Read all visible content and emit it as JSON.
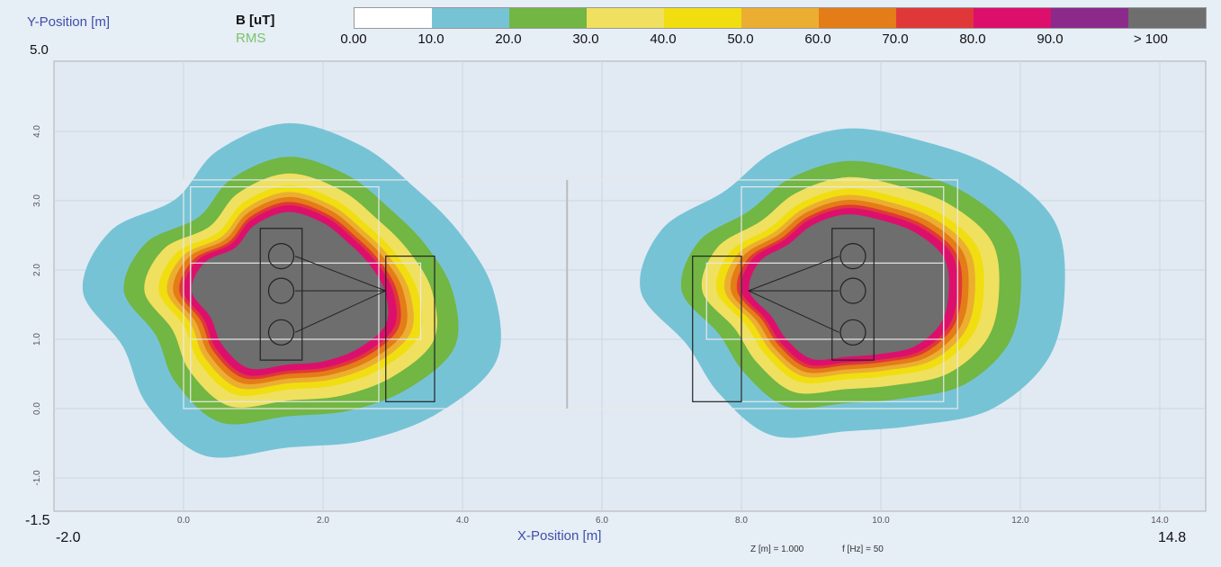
{
  "header": {
    "y_axis_label": "Y-Position [m]",
    "unit_label": "B [uT]",
    "mode_label": "RMS",
    "y_max": "5.0"
  },
  "x_axis_label": "X-Position [m]",
  "corner": {
    "y_min": "-1.5",
    "x_min": "-2.0",
    "x_max": "14.8"
  },
  "footer": {
    "z_text": "Z [m] = 1.000",
    "f_text": "f [Hz] = 50"
  },
  "colorbar": {
    "colors": [
      "#ffffff",
      "#77c3d6",
      "#72b644",
      "#f0e060",
      "#f0de10",
      "#ecae30",
      "#e47c18",
      "#e03838",
      "#dc106c",
      "#8c2a8c",
      "#6e6e6e"
    ],
    "labels": [
      "0.00",
      "10.0",
      "20.0",
      "30.0",
      "40.0",
      "50.0",
      "60.0",
      "70.0",
      "80.0",
      "90.0",
      "> 100"
    ]
  },
  "chart_data": {
    "type": "heatmap",
    "title": "",
    "quantity": "B [uT]",
    "mode": "RMS",
    "xlabel": "X-Position [m]",
    "ylabel": "Y-Position [m]",
    "xlim": [
      -2.0,
      14.8
    ],
    "ylim": [
      -1.5,
      5.0
    ],
    "x_ticks": [
      "0.0",
      "2.0",
      "4.0",
      "6.0",
      "8.0",
      "10.0",
      "12.0",
      "14.0"
    ],
    "y_ticks": [
      "4.0",
      "3.0",
      "2.0",
      "1.0",
      "0.0",
      "-1.0"
    ],
    "z_m": 1.0,
    "frequency_hz": 50,
    "contour_levels": [
      10,
      20,
      30,
      40,
      50,
      60,
      70,
      80,
      90,
      100
    ],
    "field_sources": [
      {
        "name": "left",
        "center_x": 1.5,
        "center_y": 1.7
      },
      {
        "name": "right",
        "center_x": 9.5,
        "center_y": 1.7
      }
    ]
  }
}
